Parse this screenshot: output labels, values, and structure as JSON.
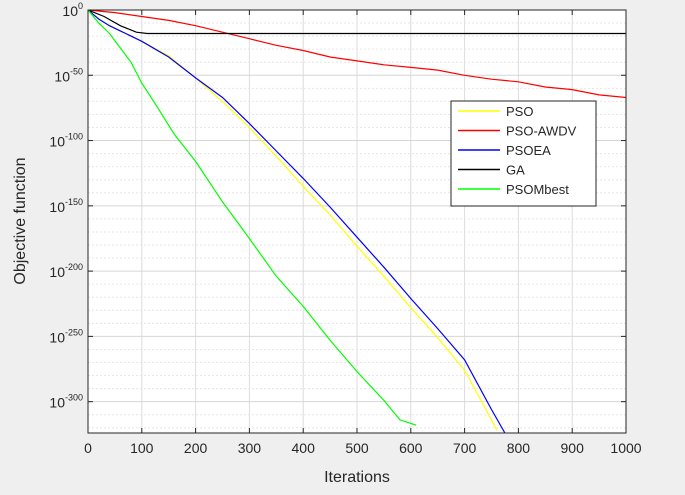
{
  "chart_data": {
    "type": "line",
    "title": "",
    "xlabel": "Iterations",
    "ylabel": "Objective function",
    "xlim": [
      0,
      1000
    ],
    "xticks": [
      0,
      100,
      200,
      300,
      400,
      500,
      600,
      700,
      800,
      900,
      1000
    ],
    "ylim_log10": [
      -324,
      0
    ],
    "y_scale": "log",
    "ytick_exponents": [
      0,
      -50,
      -100,
      -150,
      -200,
      -250,
      -300
    ],
    "ytick_base": "10",
    "grid": true,
    "legend_position": "right",
    "series": [
      {
        "name": "PSO",
        "color": "#ffff00",
        "x": [
          0,
          20,
          40,
          60,
          80,
          100,
          150,
          200,
          250,
          300,
          350,
          400,
          450,
          500,
          550,
          600,
          650,
          700,
          750,
          760
        ],
        "log10_y": [
          0,
          -7,
          -12,
          -16,
          -20,
          -24,
          -35,
          -52,
          -70,
          -90,
          -112,
          -135,
          -157,
          -181,
          -204,
          -228,
          -251,
          -276,
          -314,
          -322
        ]
      },
      {
        "name": "PSO-AWDV",
        "color": "#ff0000",
        "x": [
          0,
          50,
          100,
          150,
          200,
          250,
          300,
          350,
          400,
          450,
          500,
          550,
          600,
          650,
          700,
          750,
          800,
          850,
          900,
          950,
          1000
        ],
        "log10_y": [
          0,
          -2,
          -5,
          -8,
          -12,
          -17,
          -22,
          -27,
          -31,
          -36,
          -39,
          -42,
          -44,
          -46,
          -50,
          -53,
          -55,
          -59,
          -61,
          -65,
          -67
        ]
      },
      {
        "name": "PSOEA",
        "color": "#0000ff",
        "x": [
          0,
          20,
          40,
          60,
          80,
          100,
          150,
          200,
          250,
          300,
          350,
          400,
          450,
          500,
          550,
          600,
          650,
          700,
          750,
          775
        ],
        "log10_y": [
          0,
          -7,
          -12,
          -16,
          -20,
          -24,
          -36,
          -52,
          -67,
          -87,
          -108,
          -129,
          -151,
          -174,
          -197,
          -221,
          -244,
          -268,
          -306,
          -324
        ]
      },
      {
        "name": "GA",
        "color": "#000000",
        "x": [
          0,
          30,
          60,
          90,
          110,
          150,
          200,
          1000
        ],
        "log10_y": [
          0,
          -5,
          -12,
          -17,
          -18,
          -18,
          -18,
          -18
        ]
      },
      {
        "name": "PSOMbest",
        "color": "#00ff00",
        "x": [
          0,
          20,
          40,
          60,
          80,
          100,
          130,
          160,
          200,
          250,
          300,
          350,
          400,
          450,
          500,
          550,
          580,
          610
        ],
        "log10_y": [
          0,
          -10,
          -18,
          -29,
          -40,
          -56,
          -75,
          -95,
          -116,
          -147,
          -175,
          -204,
          -227,
          -253,
          -277,
          -299,
          -314,
          -318
        ]
      }
    ]
  }
}
